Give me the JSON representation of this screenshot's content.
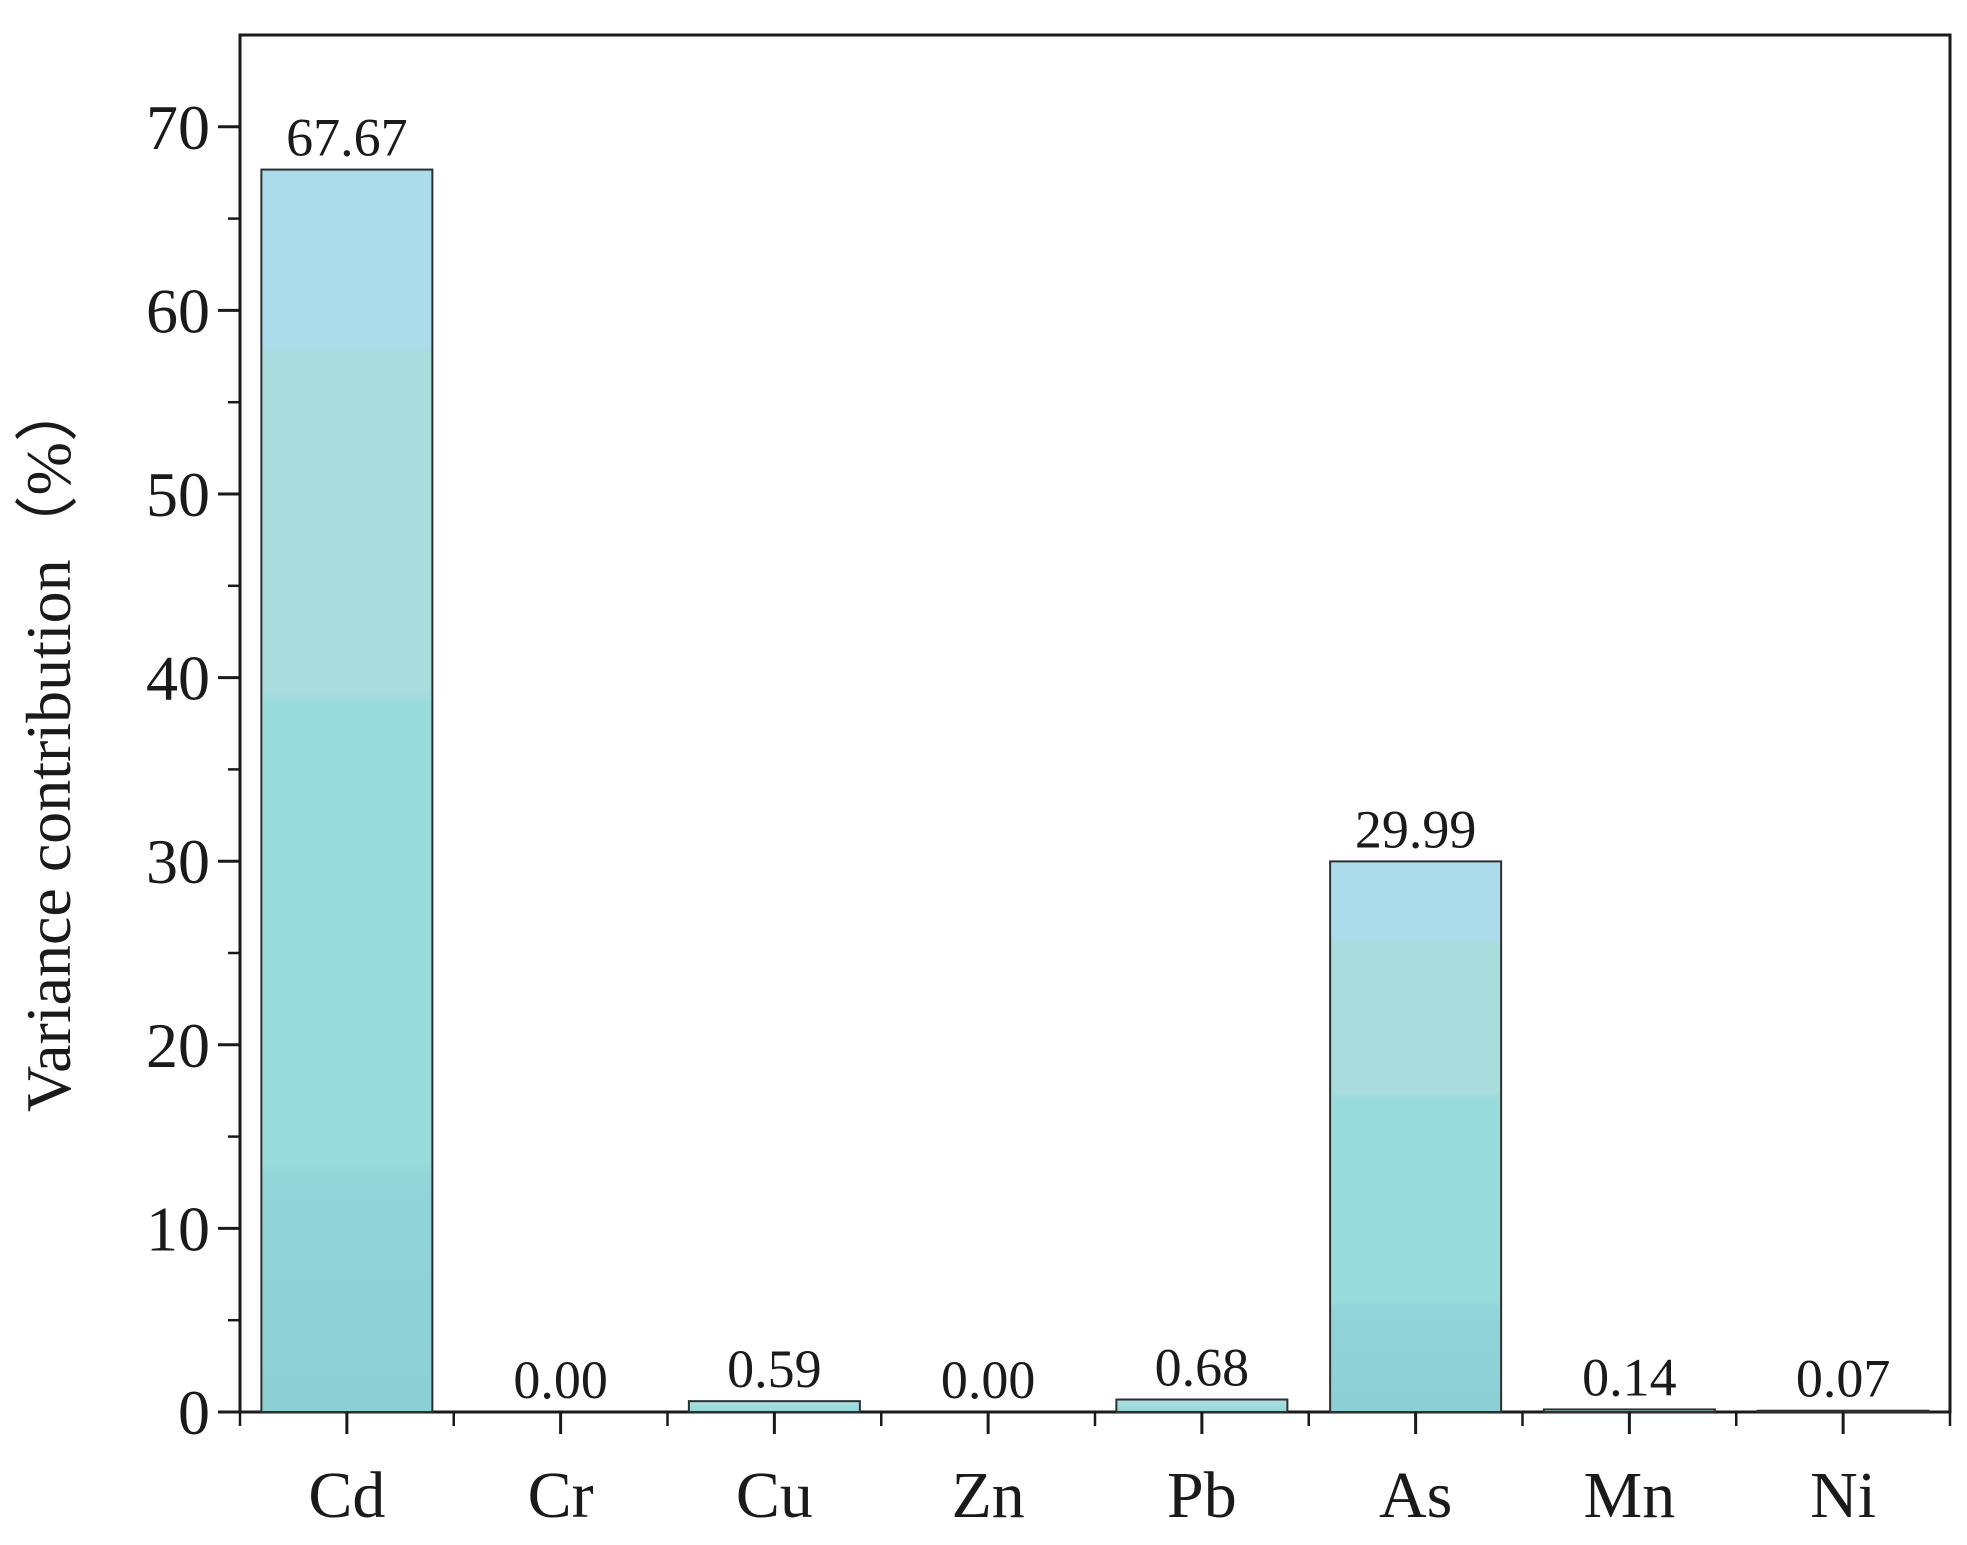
{
  "chart_data": {
    "type": "bar",
    "categories": [
      "Cd",
      "Cr",
      "Cu",
      "Zn",
      "Pb",
      "As",
      "Mn",
      "Ni"
    ],
    "values": [
      67.67,
      0.0,
      0.59,
      0.0,
      0.68,
      29.99,
      0.14,
      0.07
    ],
    "data_labels": [
      "67.67",
      "0.00",
      "0.59",
      "0.00",
      "0.68",
      "29.99",
      "0.14",
      "0.07"
    ],
    "ylabel": "Variance contribution（%）",
    "ylim": [
      0,
      75
    ],
    "yticks": [
      0,
      10,
      20,
      30,
      40,
      50,
      60,
      70
    ],
    "grid": false,
    "colors": {
      "bar_top": "#acdcec",
      "bar_mid": "#a8dcd8",
      "bar_main": "#9adcdc",
      "bar_bottom": "#8ccfd4",
      "bar_stroke": "#2f2f2f",
      "axis": "#1a1a1a"
    }
  }
}
